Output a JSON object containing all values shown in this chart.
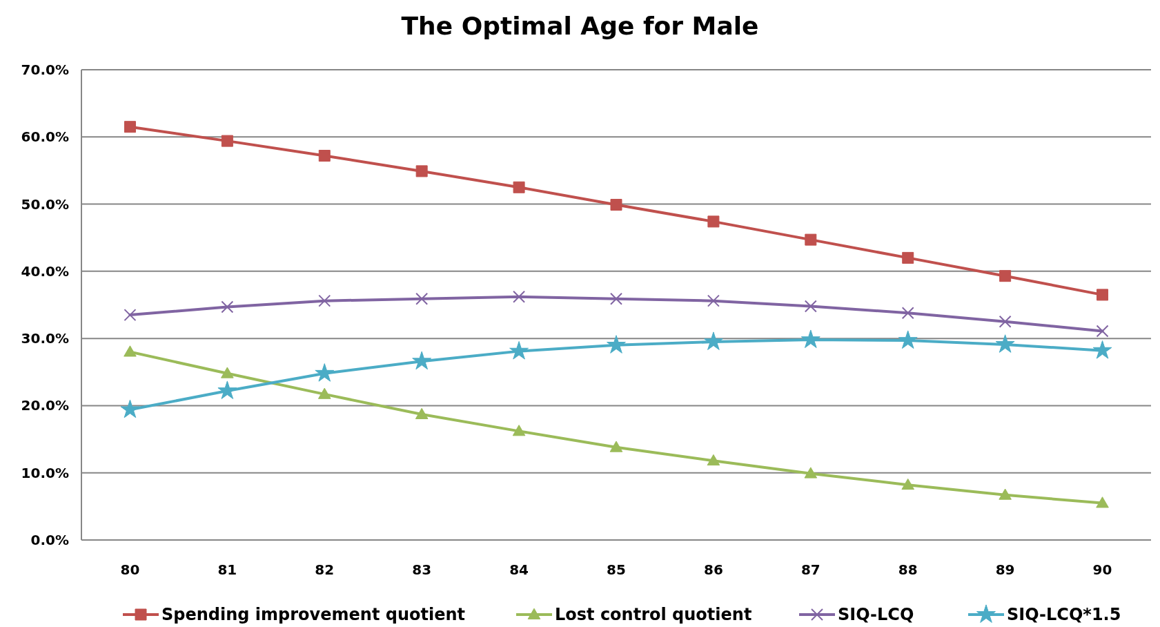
{
  "chart_data": {
    "type": "line",
    "title": "The Optimal Age for Male",
    "categories": [
      "80",
      "81",
      "82",
      "83",
      "84",
      "85",
      "86",
      "87",
      "88",
      "89",
      "90"
    ],
    "series": [
      {
        "name": "Spending improvement quotient",
        "color": "#c0504d",
        "marker": "square",
        "values": [
          61.5,
          59.4,
          57.2,
          54.9,
          52.5,
          49.9,
          47.4,
          44.7,
          42.0,
          39.3,
          36.5
        ]
      },
      {
        "name": "Lost control quotient",
        "color": "#9bbb59",
        "marker": "triangle",
        "values": [
          28.0,
          24.8,
          21.7,
          18.7,
          16.2,
          13.8,
          11.8,
          9.9,
          8.2,
          6.7,
          5.5
        ]
      },
      {
        "name": "SIQ-LCQ",
        "color": "#8064a2",
        "marker": "cross",
        "values": [
          33.5,
          34.7,
          35.6,
          35.9,
          36.2,
          35.9,
          35.6,
          34.8,
          33.8,
          32.5,
          31.1
        ]
      },
      {
        "name": "SIQ-LCQ*1.5",
        "color": "#4bacc6",
        "marker": "star",
        "values": [
          19.4,
          22.2,
          24.8,
          26.6,
          28.1,
          29.0,
          29.5,
          29.8,
          29.7,
          29.1,
          28.2
        ]
      }
    ],
    "ylim": [
      0,
      70
    ],
    "yticks": [
      {
        "value": 0,
        "label": "0.0%"
      },
      {
        "value": 10,
        "label": "10.0%"
      },
      {
        "value": 20,
        "label": "20.0%"
      },
      {
        "value": 30,
        "label": "30.0%"
      },
      {
        "value": 40,
        "label": "40.0%"
      },
      {
        "value": 50,
        "label": "50.0%"
      },
      {
        "value": 60,
        "label": "60.0%"
      },
      {
        "value": 70,
        "label": "70.0%"
      }
    ],
    "grid": "y",
    "legend": "bottom",
    "line_style": "solid"
  }
}
